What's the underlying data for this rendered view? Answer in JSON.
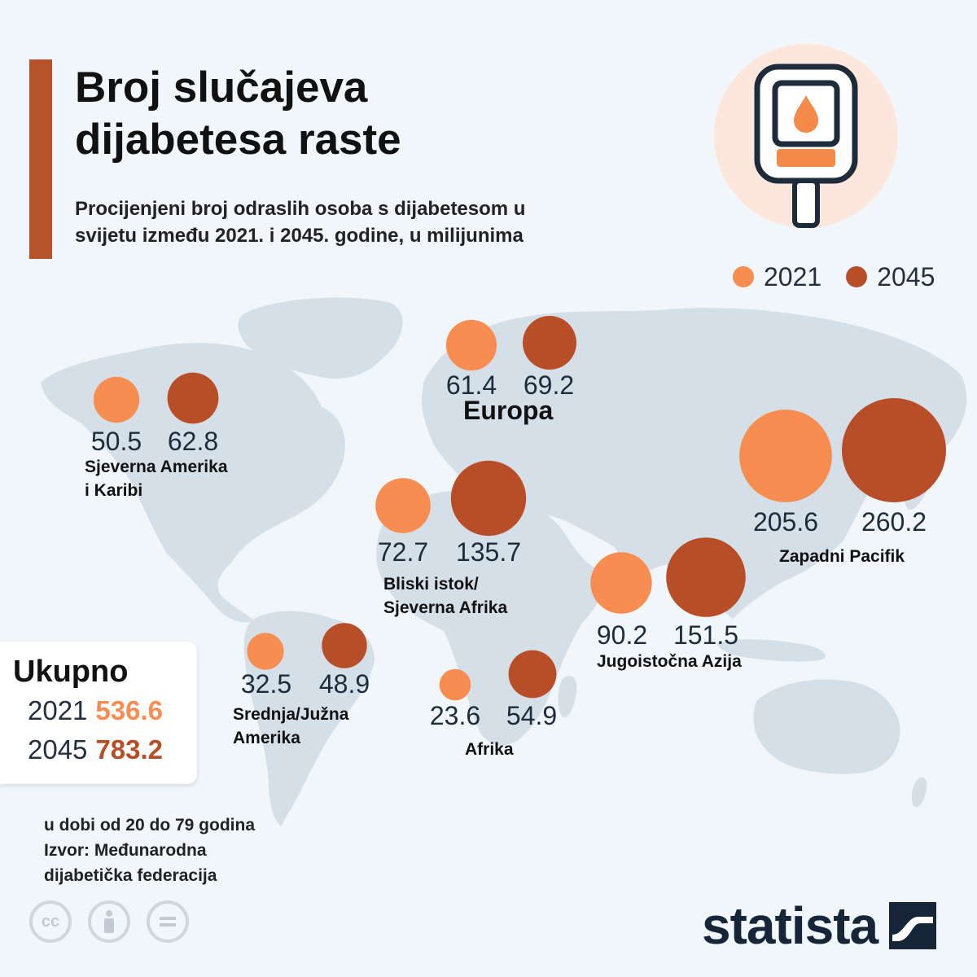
{
  "title_lines": [
    "Broj slučajeva",
    "dijabetesa raste"
  ],
  "subtitle_lines": [
    "Procijenjeni broj odraslih osoba s dijabetesom u",
    "svijetu između 2021. i 2045. godine, u milijunima"
  ],
  "legend": [
    {
      "label": "2021",
      "color": "#f78d50"
    },
    {
      "label": "2045",
      "color": "#b84e27"
    }
  ],
  "chart_data": {
    "type": "bubble-map",
    "unit": "milijuni",
    "series": [
      {
        "name": "2021",
        "color": "#f78d50"
      },
      {
        "name": "2045",
        "color": "#b84e27"
      }
    ],
    "regions": [
      {
        "key": "na",
        "label_lines": [
          "Sjeverna Amerika",
          "i Karibi"
        ],
        "v2021": 50.5,
        "v2045": 62.8,
        "t2021": "50.5",
        "t2045": "62.8"
      },
      {
        "key": "eu",
        "label_lines": [
          "Europa"
        ],
        "v2021": 61.4,
        "v2045": 69.2,
        "t2021": "61.4",
        "t2045": "69.2"
      },
      {
        "key": "wp",
        "label_lines": [
          "Zapadni Pacifik"
        ],
        "v2021": 205.6,
        "v2045": 260.2,
        "t2021": "205.6",
        "t2045": "260.2"
      },
      {
        "key": "mena",
        "label_lines": [
          "Bliski istok/",
          "Sjeverna Afrika"
        ],
        "v2021": 72.7,
        "v2045": 135.7,
        "t2021": "72.7",
        "t2045": "135.7"
      },
      {
        "key": "sea",
        "label_lines": [
          "Jugoistočna Azija"
        ],
        "v2021": 90.2,
        "v2045": 151.5,
        "t2021": "90.2",
        "t2045": "151.5"
      },
      {
        "key": "sam",
        "label_lines": [
          "Srednja/Južna",
          "Amerika"
        ],
        "v2021": 32.5,
        "v2045": 48.9,
        "t2021": "32.5",
        "t2045": "48.9"
      },
      {
        "key": "af",
        "label_lines": [
          "Afrika"
        ],
        "v2021": 23.6,
        "v2045": 54.9,
        "t2021": "23.6",
        "t2045": "54.9"
      }
    ]
  },
  "total": {
    "title": "Ukupno",
    "rows": [
      {
        "year": "2021",
        "value": "536.6",
        "color": "#f78d50"
      },
      {
        "year": "2045",
        "value": "783.2",
        "color": "#b84e27"
      }
    ]
  },
  "notes": [
    "u dobi od 20 do 79 godina",
    "Izvor: Međunarodna",
    "dijabetička federacija"
  ],
  "logo_text": "statista",
  "icons": [
    "glucometer-icon",
    "cc-icon",
    "attribution-icon",
    "equals-icon",
    "statista-logo-icon"
  ]
}
